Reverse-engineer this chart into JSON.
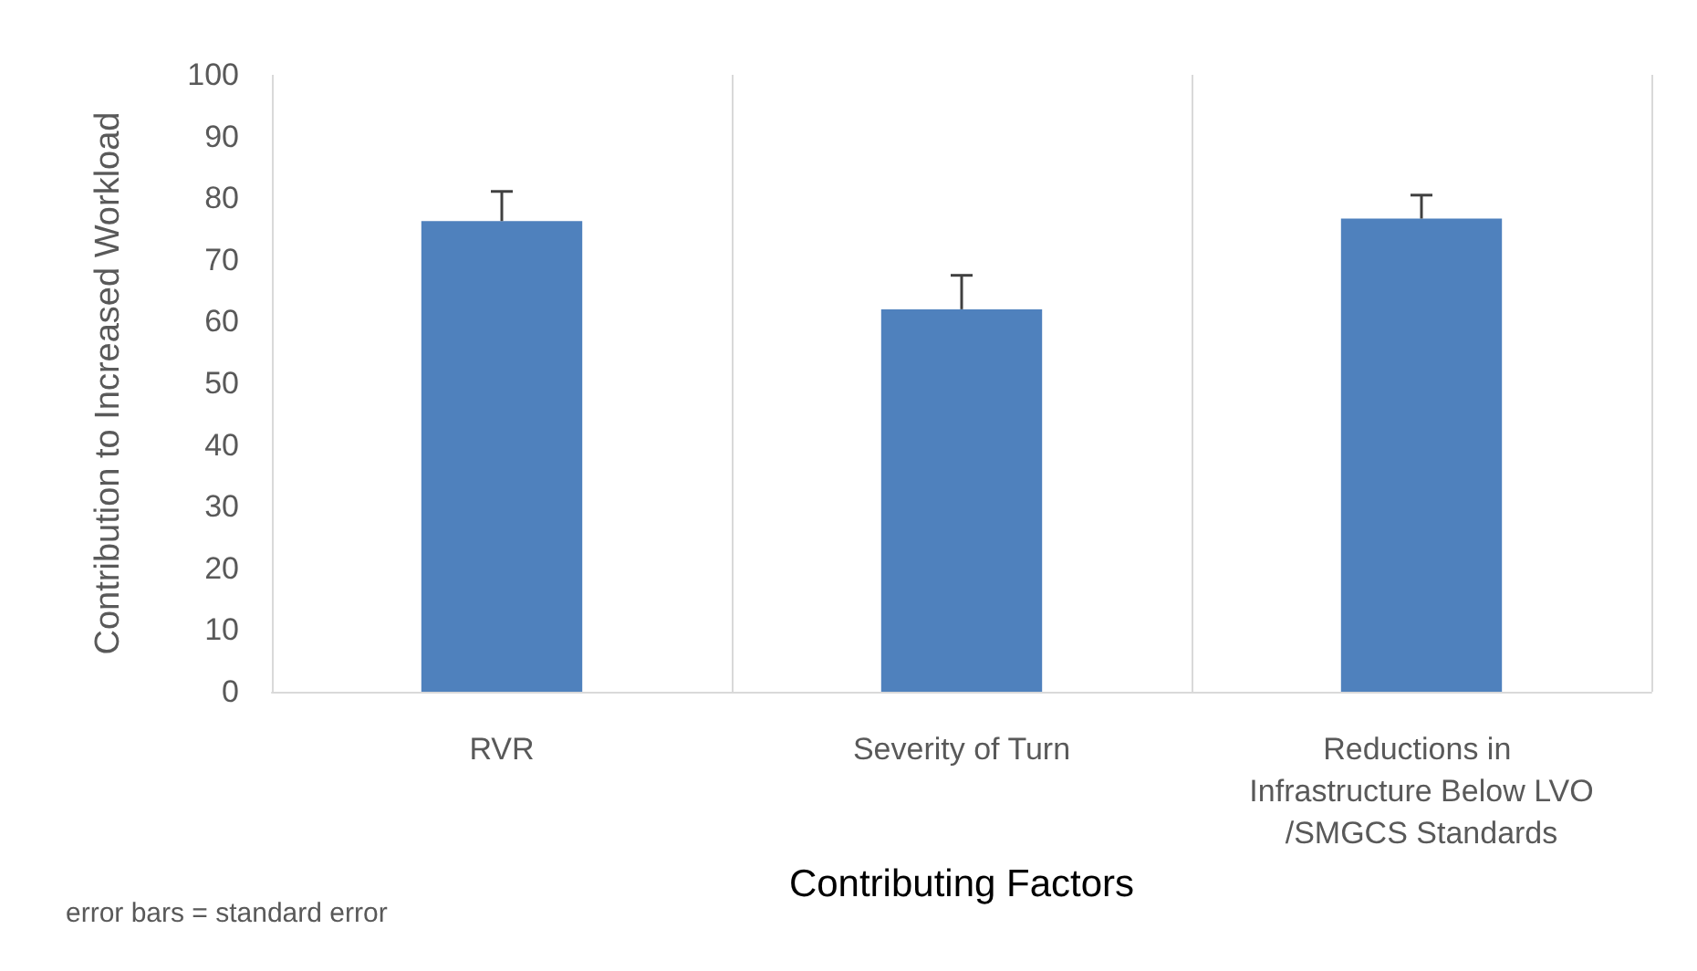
{
  "chart_data": {
    "type": "bar",
    "categories": [
      "RVR",
      "Severity of Turn",
      "Reductions in Infrastructure Below LVO/SMGCS Standards"
    ],
    "values": [
      76.3,
      62.0,
      76.7
    ],
    "errors": [
      [
        76.3,
        81.1
      ],
      [
        62.0,
        67.5
      ],
      [
        76.7,
        80.5
      ]
    ],
    "color": "#4f81bd",
    "xlabel": "Contributing Factors",
    "ylabel": "Contribution to Increased Workload",
    "ylim": [
      0,
      100
    ],
    "yticks": [
      0,
      10,
      20,
      30,
      40,
      50,
      60,
      70,
      80,
      90,
      100
    ],
    "grid": "x",
    "annotations": [
      "error bars = standard error"
    ]
  }
}
